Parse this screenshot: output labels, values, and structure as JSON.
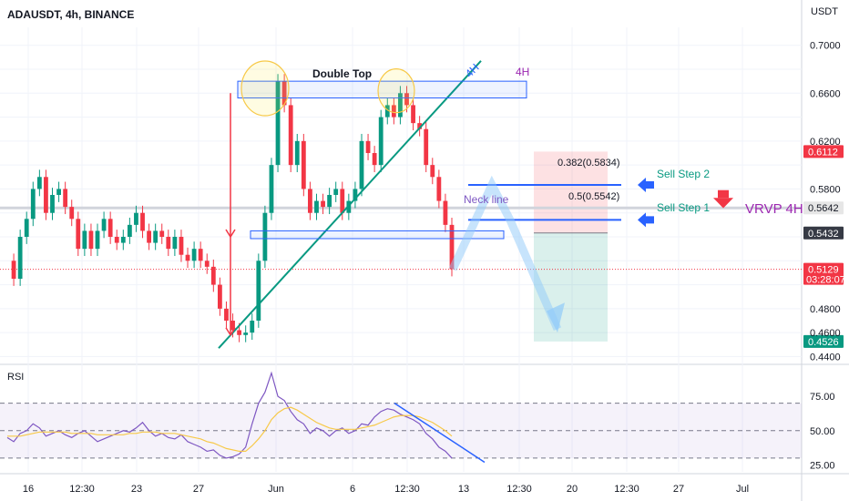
{
  "header": {
    "symbol_label": "ADAUSDT, 4h, BINANCE",
    "currency": "USDT"
  },
  "chart_data": [
    {
      "type": "candlestick",
      "title": "ADAUSDT, 4h, BINANCE",
      "ylim": [
        0.435,
        0.715
      ],
      "yticks": [
        0.44,
        0.46,
        0.48,
        0.5,
        0.52,
        0.54,
        0.56,
        0.58,
        0.6,
        0.62,
        0.64,
        0.66,
        0.68,
        0.7
      ],
      "ytick_labels": [
        "0.4400",
        "0.4600",
        "0.4800",
        "",
        "",
        "",
        "",
        "0.5800",
        "",
        "0.6200",
        "",
        "0.6600",
        "",
        "0.7000"
      ],
      "x_tick_labels": [
        "16",
        "12:30",
        "23",
        "27",
        "Jun",
        "6",
        "12:30",
        "13",
        "12:30",
        "20",
        "12:30",
        "27",
        "Jul"
      ],
      "grid": true,
      "price_path": [
        0.52,
        0.505,
        0.54,
        0.555,
        0.58,
        0.59,
        0.56,
        0.575,
        0.58,
        0.565,
        0.555,
        0.53,
        0.545,
        0.53,
        0.545,
        0.555,
        0.54,
        0.535,
        0.54,
        0.55,
        0.56,
        0.545,
        0.535,
        0.545,
        0.54,
        0.53,
        0.54,
        0.525,
        0.52,
        0.53,
        0.52,
        0.515,
        0.5,
        0.48,
        0.47,
        0.462,
        0.458,
        0.46,
        0.47,
        0.52,
        0.56,
        0.6,
        0.67,
        0.65,
        0.6,
        0.62,
        0.58,
        0.56,
        0.57,
        0.565,
        0.575,
        0.58,
        0.56,
        0.57,
        0.58,
        0.62,
        0.61,
        0.6,
        0.64,
        0.65,
        0.64,
        0.66,
        0.65,
        0.635,
        0.63,
        0.6,
        0.59,
        0.57,
        0.55,
        0.513
      ],
      "price_labels": [
        {
          "text": "0.6112",
          "value": 0.6112,
          "color": "#f23645"
        },
        {
          "text": "0.5642",
          "value": 0.5642,
          "color": "#e6e6e6"
        },
        {
          "text": "0.5432",
          "value": 0.5432,
          "color": "#363a45"
        },
        {
          "text": "0.5129",
          "sub": "03:28:07",
          "value": 0.5129,
          "color": "#f23645"
        },
        {
          "text": "0.4526",
          "value": 0.4526,
          "color": "#089981"
        }
      ],
      "fib_levels": [
        {
          "label": "0.382(0.5834)",
          "value": 0.5834
        },
        {
          "label": "0.5(0.5542)",
          "value": 0.5542
        }
      ],
      "position": {
        "entry": 0.5432,
        "stop": 0.6112,
        "target": 0.4526
      },
      "horizontal_line": 0.5642,
      "annotations": {
        "double_top": "Double Top",
        "neck_line": "Neck line",
        "tf_label_blue": "4H",
        "tf_label_purple": "4H",
        "sell_step_1": "Sell Step 1",
        "sell_step_2": "Sell Step 2",
        "vrvp": "VRVP 4H"
      }
    },
    {
      "type": "line",
      "title": "RSI",
      "ylim": [
        20,
        95
      ],
      "yticks": [
        25,
        50,
        75
      ],
      "ytick_labels": [
        "25.00",
        "50.00",
        "75.00"
      ],
      "band": [
        30,
        70
      ],
      "series": [
        {
          "values": [
            45,
            42,
            48,
            50,
            55,
            52,
            46,
            48,
            50,
            47,
            45,
            48,
            50,
            46,
            42,
            44,
            46,
            48,
            50,
            49,
            52,
            56,
            50,
            46,
            48,
            45,
            44,
            47,
            42,
            40,
            38,
            35,
            36,
            32,
            30,
            31,
            33,
            38,
            55,
            70,
            78,
            92,
            75,
            72,
            64,
            58,
            55,
            48,
            52,
            50,
            46,
            50,
            52,
            48,
            50,
            55,
            54,
            60,
            64,
            66,
            65,
            62,
            60,
            58,
            55,
            48,
            44,
            38,
            35,
            30
          ]
        },
        {
          "values": [
            46,
            46,
            46,
            47,
            48,
            49,
            49,
            49,
            49,
            49,
            48,
            48,
            48,
            48,
            47,
            47,
            47,
            47,
            47,
            48,
            48,
            49,
            49,
            49,
            48,
            48,
            48,
            47,
            46,
            45,
            44,
            42,
            41,
            39,
            37,
            36,
            35,
            35,
            39,
            44,
            50,
            58,
            63,
            66,
            67,
            65,
            62,
            59,
            56,
            54,
            52,
            51,
            51,
            51,
            51,
            52,
            53,
            54,
            56,
            58,
            60,
            61,
            61,
            61,
            60,
            58,
            56,
            53,
            50,
            46
          ]
        }
      ]
    }
  ]
}
